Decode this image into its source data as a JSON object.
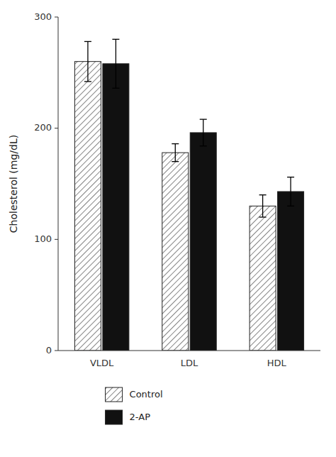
{
  "chart_data": {
    "type": "bar",
    "categories": [
      "VLDL",
      "LDL",
      "HDL"
    ],
    "series": [
      {
        "name": "Control",
        "color": "#ffffff",
        "values": [
          260,
          178,
          130
        ],
        "errors": [
          18,
          8,
          10
        ]
      },
      {
        "name": "2-AP",
        "color": "#111111",
        "values": [
          258,
          196,
          143
        ],
        "errors": [
          22,
          12,
          13
        ]
      }
    ],
    "y_label": "Cholesterol (mg/dL)",
    "ylim": [
      0,
      300
    ],
    "yticks": [
      0,
      100,
      200,
      300
    ],
    "grid": false,
    "legend": "bottom"
  }
}
